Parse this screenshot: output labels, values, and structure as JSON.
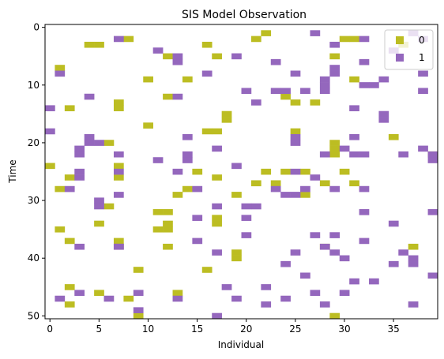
{
  "chart_data": {
    "type": "heatmap",
    "title": "SIS Model Observation",
    "xlabel": "Individual",
    "ylabel": "Time",
    "xlim": [
      -0.5,
      39.5
    ],
    "ylim": [
      50.5,
      -0.5
    ],
    "xticks": [
      0,
      5,
      10,
      15,
      20,
      25,
      30,
      35
    ],
    "yticks": [
      0,
      10,
      20,
      30,
      40,
      50
    ],
    "grid": false,
    "legend_position": "top-right",
    "series": [
      {
        "name": "0",
        "color": "#bcbd22",
        "cells": [
          [
            22,
            1
          ],
          [
            8,
            2
          ],
          [
            21,
            2
          ],
          [
            30,
            2
          ],
          [
            31,
            2
          ],
          [
            4,
            3
          ],
          [
            5,
            3
          ],
          [
            16,
            3
          ],
          [
            12,
            5
          ],
          [
            17,
            5
          ],
          [
            29,
            5
          ],
          [
            36,
            3
          ],
          [
            1,
            7
          ],
          [
            10,
            9
          ],
          [
            14,
            9
          ],
          [
            31,
            9
          ],
          [
            12,
            12
          ],
          [
            24,
            12
          ],
          [
            7,
            13
          ],
          [
            25,
            13
          ],
          [
            27,
            13
          ],
          [
            7,
            14
          ],
          [
            2,
            14
          ],
          [
            18,
            15
          ],
          [
            18,
            16
          ],
          [
            10,
            17
          ],
          [
            16,
            18
          ],
          [
            17,
            18
          ],
          [
            25,
            18
          ],
          [
            35,
            19
          ],
          [
            6,
            20
          ],
          [
            29,
            20
          ],
          [
            29,
            21
          ],
          [
            29,
            22
          ],
          [
            39,
            22
          ],
          [
            0,
            24
          ],
          [
            7,
            24
          ],
          [
            15,
            25
          ],
          [
            22,
            25
          ],
          [
            24,
            25
          ],
          [
            26,
            25
          ],
          [
            30,
            25
          ],
          [
            2,
            26
          ],
          [
            7,
            26
          ],
          [
            17,
            26
          ],
          [
            21,
            27
          ],
          [
            23,
            27
          ],
          [
            28,
            27
          ],
          [
            31,
            27
          ],
          [
            1,
            28
          ],
          [
            14,
            28
          ],
          [
            13,
            29
          ],
          [
            19,
            29
          ],
          [
            26,
            29
          ],
          [
            6,
            31
          ],
          [
            11,
            32
          ],
          [
            12,
            32
          ],
          [
            17,
            33
          ],
          [
            17,
            34
          ],
          [
            5,
            34
          ],
          [
            12,
            34
          ],
          [
            1,
            35
          ],
          [
            11,
            35
          ],
          [
            12,
            35
          ],
          [
            2,
            37
          ],
          [
            7,
            37
          ],
          [
            7,
            38
          ],
          [
            12,
            38
          ],
          [
            28,
            38
          ],
          [
            37,
            38
          ],
          [
            19,
            39
          ],
          [
            19,
            40
          ],
          [
            9,
            42
          ],
          [
            16,
            42
          ],
          [
            2,
            45
          ],
          [
            5,
            46
          ],
          [
            13,
            46
          ],
          [
            8,
            47
          ],
          [
            2,
            48
          ],
          [
            9,
            50
          ],
          [
            29,
            50
          ]
        ]
      },
      {
        "name": "1",
        "color": "#9467bd",
        "cells": [
          [
            27,
            1
          ],
          [
            37,
            1
          ],
          [
            32,
            2
          ],
          [
            38,
            2
          ],
          [
            7,
            2
          ],
          [
            29,
            3
          ],
          [
            11,
            4
          ],
          [
            35,
            4
          ],
          [
            32,
            6
          ],
          [
            13,
            5
          ],
          [
            19,
            5
          ],
          [
            23,
            6
          ],
          [
            29,
            7
          ],
          [
            13,
            6
          ],
          [
            16,
            8
          ],
          [
            25,
            8
          ],
          [
            29,
            8
          ],
          [
            38,
            8
          ],
          [
            1,
            8
          ],
          [
            28,
            9
          ],
          [
            34,
            9
          ],
          [
            20,
            11
          ],
          [
            23,
            11
          ],
          [
            24,
            11
          ],
          [
            26,
            11
          ],
          [
            28,
            11
          ],
          [
            28,
            10
          ],
          [
            32,
            10
          ],
          [
            33,
            10
          ],
          [
            38,
            11
          ],
          [
            4,
            12
          ],
          [
            13,
            12
          ],
          [
            21,
            13
          ],
          [
            0,
            14
          ],
          [
            31,
            14
          ],
          [
            34,
            15
          ],
          [
            34,
            16
          ],
          [
            0,
            18
          ],
          [
            14,
            19
          ],
          [
            31,
            19
          ],
          [
            4,
            19
          ],
          [
            25,
            19
          ],
          [
            4,
            20
          ],
          [
            5,
            20
          ],
          [
            25,
            20
          ],
          [
            3,
            21
          ],
          [
            17,
            21
          ],
          [
            30,
            21
          ],
          [
            28,
            22
          ],
          [
            31,
            22
          ],
          [
            32,
            22
          ],
          [
            39,
            22
          ],
          [
            3,
            22
          ],
          [
            7,
            22
          ],
          [
            14,
            22
          ],
          [
            36,
            22
          ],
          [
            38,
            21
          ],
          [
            39,
            23
          ],
          [
            11,
            23
          ],
          [
            14,
            23
          ],
          [
            13,
            25
          ],
          [
            25,
            25
          ],
          [
            19,
            24
          ],
          [
            3,
            25
          ],
          [
            3,
            26
          ],
          [
            7,
            25
          ],
          [
            27,
            26
          ],
          [
            2,
            28
          ],
          [
            15,
            28
          ],
          [
            23,
            28
          ],
          [
            26,
            28
          ],
          [
            29,
            28
          ],
          [
            32,
            28
          ],
          [
            7,
            29
          ],
          [
            24,
            29
          ],
          [
            25,
            29
          ],
          [
            5,
            30
          ],
          [
            5,
            31
          ],
          [
            21,
            31
          ],
          [
            17,
            31
          ],
          [
            20,
            31
          ],
          [
            32,
            32
          ],
          [
            39,
            32
          ],
          [
            15,
            33
          ],
          [
            20,
            33
          ],
          [
            35,
            34
          ],
          [
            20,
            36
          ],
          [
            27,
            36
          ],
          [
            29,
            36
          ],
          [
            15,
            37
          ],
          [
            32,
            37
          ],
          [
            28,
            38
          ],
          [
            7,
            38
          ],
          [
            3,
            38
          ],
          [
            17,
            39
          ],
          [
            25,
            39
          ],
          [
            29,
            39
          ],
          [
            36,
            39
          ],
          [
            7,
            38
          ],
          [
            30,
            40
          ],
          [
            24,
            41
          ],
          [
            35,
            41
          ],
          [
            37,
            40
          ],
          [
            37,
            41
          ],
          [
            39,
            43
          ],
          [
            26,
            43
          ],
          [
            18,
            45
          ],
          [
            22,
            45
          ],
          [
            31,
            44
          ],
          [
            33,
            44
          ],
          [
            3,
            46
          ],
          [
            9,
            46
          ],
          [
            13,
            47
          ],
          [
            27,
            46
          ],
          [
            30,
            46
          ],
          [
            19,
            47
          ],
          [
            24,
            47
          ],
          [
            22,
            48
          ],
          [
            28,
            48
          ],
          [
            37,
            48
          ],
          [
            9,
            49
          ],
          [
            17,
            50
          ],
          [
            6,
            47
          ],
          [
            1,
            47
          ]
        ]
      }
    ]
  }
}
